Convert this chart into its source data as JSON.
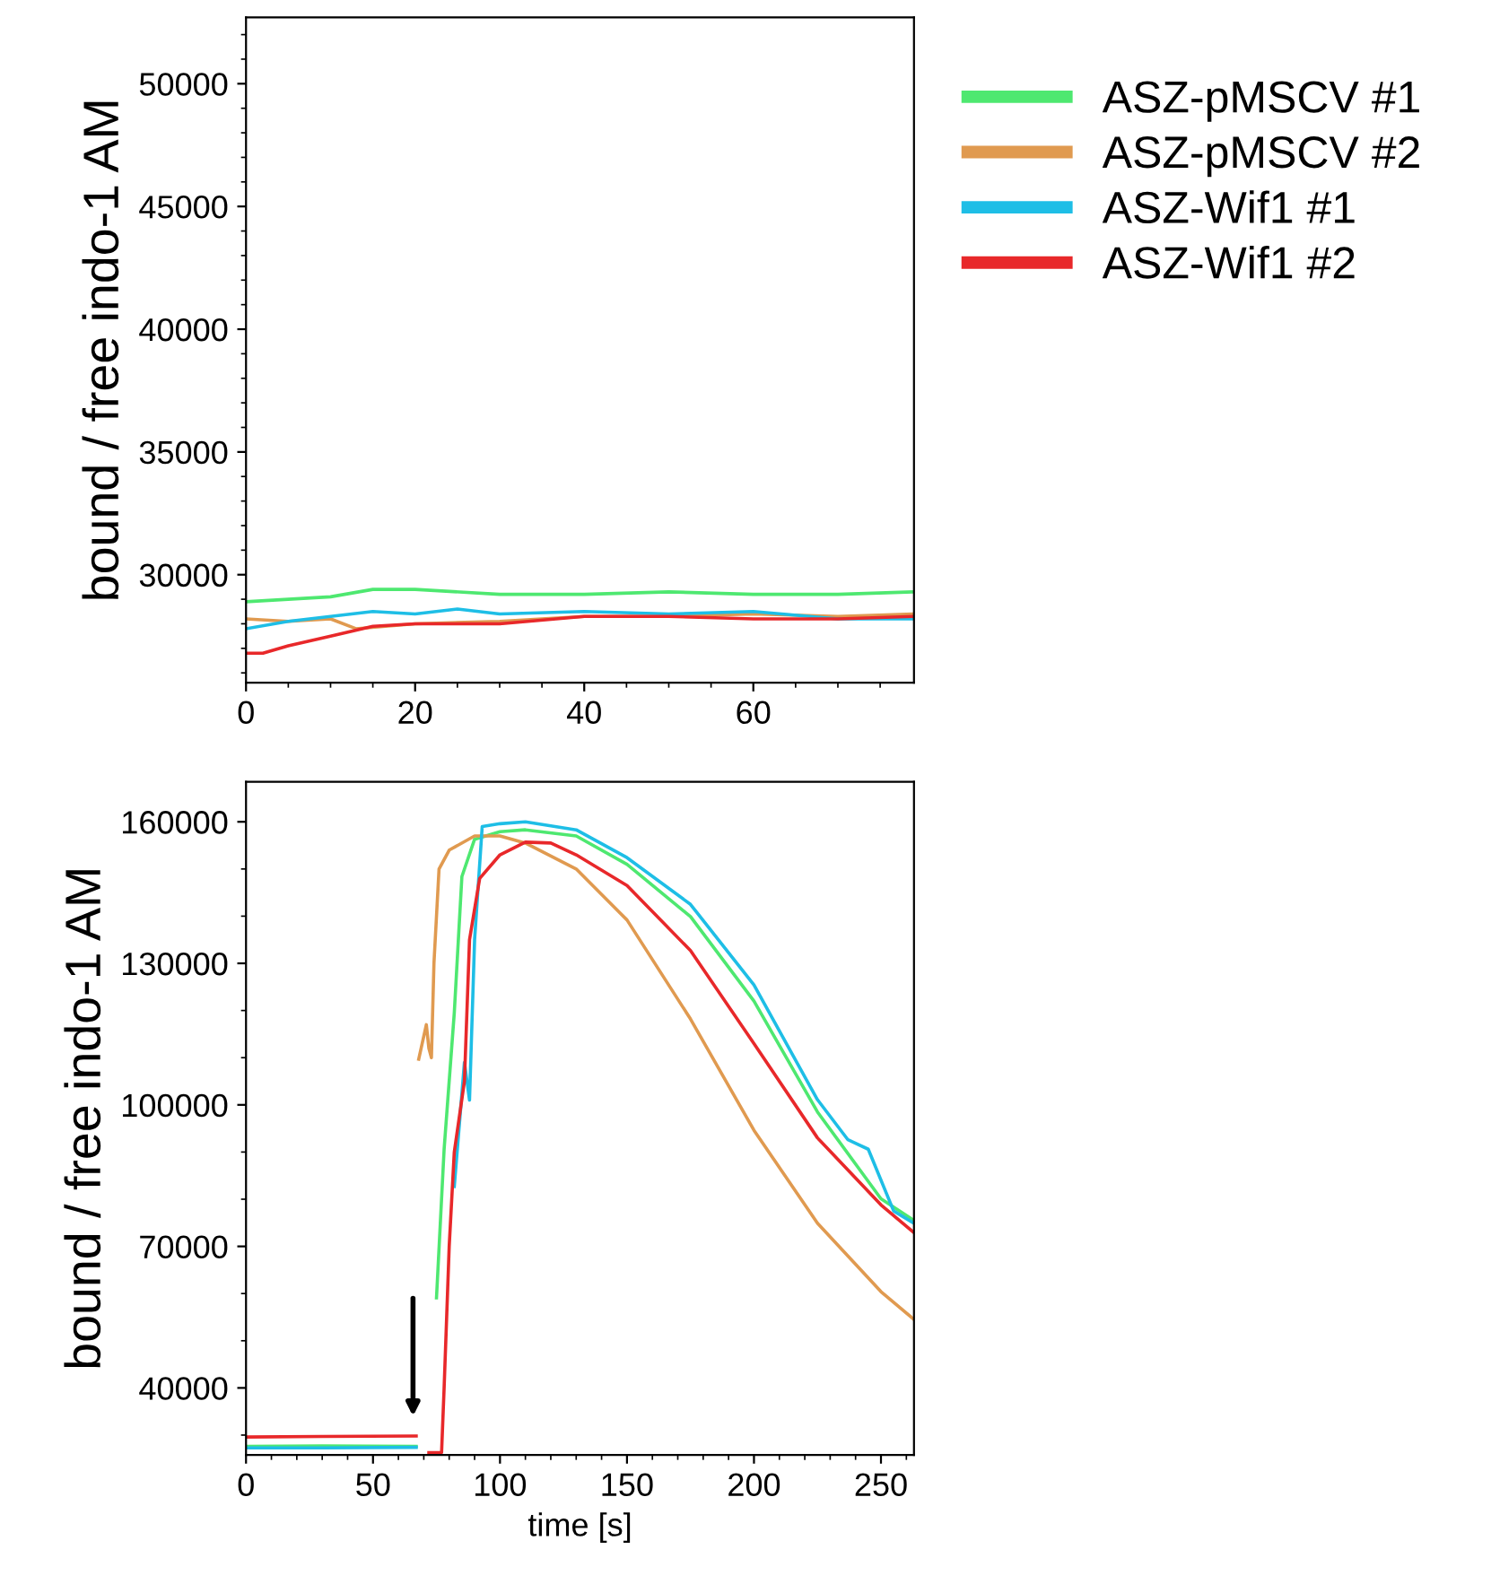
{
  "chart_data": [
    {
      "type": "line",
      "ylabel": "bound / free indo-1 AM",
      "xlim": [
        0,
        79
      ],
      "ylim": [
        25600,
        52700
      ],
      "xticks": [
        0,
        20,
        40,
        60
      ],
      "yticks": [
        30000,
        35000,
        40000,
        45000,
        50000
      ],
      "grid": false,
      "legend": "right",
      "marker": "none",
      "line_style": "solid",
      "series": [
        {
          "name": "ASZ-pMSCV #1",
          "color": "#4ee870",
          "x": [
            0,
            10,
            15,
            20,
            30,
            40,
            50,
            60,
            70,
            79
          ],
          "values": [
            28900,
            29100,
            29400,
            29400,
            29200,
            29200,
            29300,
            29200,
            29200,
            29300
          ]
        },
        {
          "name": "ASZ-pMSCV #2",
          "color": "#e09a50",
          "x": [
            0,
            5,
            10,
            13,
            20,
            30,
            40,
            50,
            60,
            70,
            79
          ],
          "values": [
            28200,
            28100,
            28200,
            27800,
            28000,
            28100,
            28300,
            28300,
            28400,
            28300,
            28400
          ]
        },
        {
          "name": "ASZ-Wif1 #1",
          "color": "#1ebee6",
          "x": [
            0,
            5,
            10,
            15,
            20,
            25,
            30,
            40,
            50,
            60,
            70,
            79
          ],
          "values": [
            27800,
            28100,
            28300,
            28500,
            28400,
            28600,
            28400,
            28500,
            28400,
            28500,
            28200,
            28200
          ]
        },
        {
          "name": "ASZ-Wif1 #2",
          "color": "#e8282a",
          "x": [
            0,
            2,
            5,
            10,
            15,
            20,
            30,
            40,
            50,
            60,
            70,
            79
          ],
          "values": [
            26800,
            26800,
            27100,
            27500,
            27900,
            28000,
            28000,
            28300,
            28300,
            28200,
            28200,
            28300
          ]
        }
      ]
    },
    {
      "type": "line",
      "xlabel": "time [s]",
      "ylabel": "bound / free indo-1 AM",
      "xlim": [
        0,
        263
      ],
      "ylim": [
        25800,
        168500
      ],
      "xticks": [
        0,
        50,
        100,
        150,
        200,
        250
      ],
      "yticks": [
        40000,
        70000,
        100000,
        130000,
        160000
      ],
      "grid": false,
      "legend": false,
      "marker": "none",
      "line_style": "solid",
      "series": [
        {
          "color": "#4ee870",
          "x": [
            0,
            30,
            67,
            71,
            75,
            78,
            82,
            85,
            90,
            100,
            110,
            130,
            150,
            175,
            200,
            225,
            250,
            263
          ],
          "values": [
            27600,
            27700,
            27600,
            null,
            59100,
            90600,
            119500,
            148400,
            156300,
            157900,
            158300,
            157000,
            151000,
            139900,
            122000,
            98500,
            80100,
            75500
          ]
        },
        {
          "color": "#e09a50",
          "x": [
            68,
            71,
            72,
            73,
            74,
            76,
            80,
            90,
            100,
            110,
            130,
            150,
            175,
            200,
            225,
            250,
            263
          ],
          "values": [
            109700,
            117000,
            112000,
            110000,
            130000,
            150000,
            154000,
            157000,
            157000,
            155500,
            150000,
            139200,
            118200,
            94600,
            74900,
            60400,
            54500
          ]
        },
        {
          "color": "#1ebee6",
          "x": [
            0,
            30,
            67,
            75,
            82,
            86,
            88,
            90,
            93,
            100,
            110,
            130,
            150,
            175,
            200,
            225,
            237,
            245,
            255,
            263
          ],
          "values": [
            27300,
            27300,
            27400,
            null,
            82700,
            109000,
            101000,
            135000,
            159000,
            159600,
            160000,
            158300,
            152400,
            142500,
            125400,
            101100,
            92600,
            90600,
            77500,
            74900
          ]
        },
        {
          "color": "#e8282a",
          "x": [
            0,
            30,
            67,
            70,
            72,
            77,
            78,
            80,
            82,
            86,
            88,
            92,
            100,
            110,
            120,
            130,
            150,
            175,
            200,
            225,
            250,
            263
          ],
          "values": [
            29600,
            29700,
            29800,
            null,
            26300,
            26300,
            40000,
            70000,
            90000,
            105000,
            135000,
            148000,
            153000,
            155700,
            155500,
            153000,
            146500,
            132700,
            113000,
            93000,
            78800,
            72900
          ]
        }
      ]
    }
  ]
}
